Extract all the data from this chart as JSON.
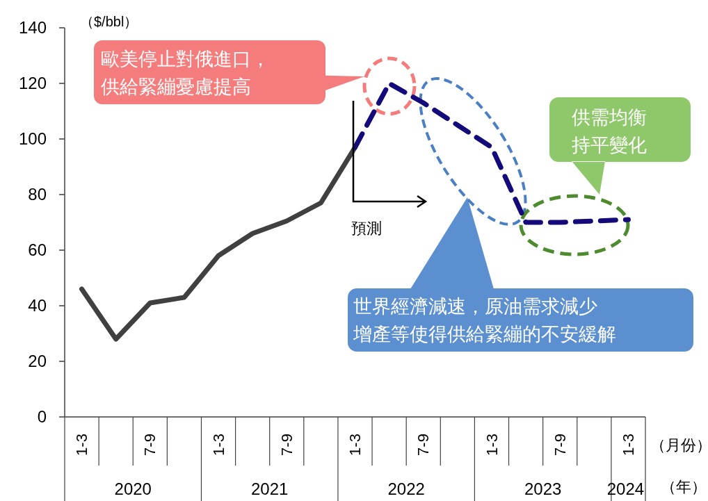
{
  "chart_data": {
    "type": "line",
    "ylabel": "（$/bbl）",
    "xlabel": "（月份）",
    "categories": [
      "1-3",
      null,
      "7-9",
      null,
      "1-3",
      null,
      "7-9",
      null,
      "1-3",
      null,
      "7-9",
      null,
      "1-3",
      null,
      "7-9",
      null,
      "1-3"
    ],
    "series": [
      {
        "color": "#404040",
        "line_style": "solid",
        "values": [
          46,
          28,
          41,
          43,
          58,
          66,
          70.5,
          77,
          97,
          null,
          null,
          null,
          null,
          null,
          null,
          null,
          null
        ]
      },
      {
        "color": "#140a7a",
        "line_style": "dashed",
        "values": [
          null,
          null,
          null,
          null,
          null,
          null,
          null,
          null,
          97,
          120,
          113,
          105,
          97,
          70,
          70,
          70.5,
          71
        ]
      }
    ],
    "ylim": [
      0,
      140
    ],
    "yticks": [
      0,
      20,
      40,
      60,
      80,
      100,
      120,
      140
    ],
    "annotations": [
      "歐美停止對俄進口，供給緊繃憂慮提高",
      "世界經濟減速，原油需求減少增產等使得供給緊繃的不安緩解",
      "供需均衡持平變化",
      "預測",
      "2020",
      "2021",
      "2022",
      "2023",
      "2024",
      "（年）"
    ]
  }
}
